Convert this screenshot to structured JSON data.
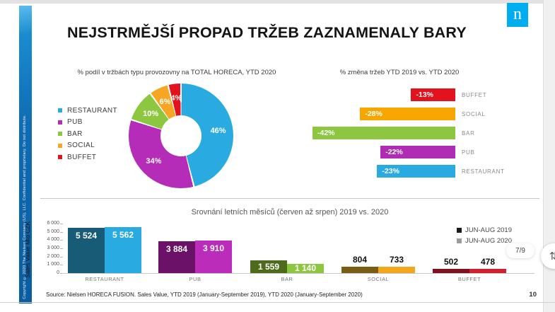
{
  "slide": {
    "title": "NEJSTRMĚJŠÍ PROPAD TRŽEB ZAZNAMENALY BARY",
    "source": "Source: Nielsen HORECA FUSION. Sales Value, YTD 2019 (January-September 2019), YTD 2020 (January-September 2020)",
    "page_number": "10",
    "copyright": "Copyright © 2020 The Nielsen Company (US), LLC. Confidential and proprietary. Do not distribute.",
    "logo_letter": "n"
  },
  "viewer": {
    "pager": "7/9",
    "scroll_button_icon": "up-down-arrows"
  },
  "chart_data": [
    {
      "type": "pie",
      "donut": true,
      "title": "% podíl v tržbách typu provozovny na TOTAL HORECA, YTD 2020",
      "categories": [
        "RESTAURANT",
        "PUB",
        "BAR",
        "SOCIAL",
        "BUFFET"
      ],
      "values": [
        46,
        34,
        10,
        6,
        4
      ],
      "labels": [
        "46%",
        "34%",
        "10%",
        "6%",
        "4%"
      ],
      "colors": [
        "#29ABE2",
        "#B52CB8",
        "#8DC63F",
        "#F6A623",
        "#E3131E"
      ],
      "legend_position": "left",
      "start_angle": 0,
      "direction": "clockwise"
    },
    {
      "type": "bar",
      "orientation": "horizontal",
      "title": "% změna tržeb YTD 2019 vs. YTD 2020",
      "categories": [
        "BUFFET",
        "SOCIAL",
        "BAR",
        "PUB",
        "RESTAURANT"
      ],
      "values": [
        -13,
        -28,
        -42,
        -22,
        -23
      ],
      "labels": [
        "-13%",
        "-28%",
        "-42%",
        "-22%",
        "-23%"
      ],
      "colors": [
        "#E3131E",
        "#F7A600",
        "#8DC63F",
        "#B02CB5",
        "#29ABE2"
      ],
      "xlim": [
        -42,
        0
      ],
      "grid": false
    },
    {
      "type": "bar",
      "title": "Srovnání letních měsíců (červen až srpen) 2019 vs. 2020",
      "categories": [
        "RESTAURANT",
        "PUB",
        "BAR",
        "SOCIAL",
        "BUFFET"
      ],
      "series": [
        {
          "name": "JUN-AUG 2019",
          "values": [
            5524,
            3884,
            1559,
            804,
            502
          ],
          "labels": [
            "5 524",
            "3 884",
            "1 559",
            "804",
            "502"
          ],
          "colors": [
            "#175B77",
            "#6B1168",
            "#4E6B1D",
            "#7A5C13",
            "#7D1321"
          ],
          "legend_color": "#1A1A1A"
        },
        {
          "name": "JUN-AUG 2020",
          "values": [
            5562,
            3910,
            1140,
            733,
            478
          ],
          "labels": [
            "5 562",
            "3 910",
            "1 140",
            "733",
            "478"
          ],
          "colors": [
            "#29ABE2",
            "#BB2CBB",
            "#8DC63F",
            "#F3A81B",
            "#CF2130"
          ],
          "legend_color": "#9B9B9B"
        }
      ],
      "ylabel": "Sales Value Mio CZK",
      "ylim": [
        0,
        6000
      ],
      "yticks": [
        "0",
        "1 000",
        "2 000",
        "3 000",
        "4 000",
        "5 000",
        "6 000"
      ],
      "grid": false,
      "legend_position": "top-right"
    }
  ]
}
